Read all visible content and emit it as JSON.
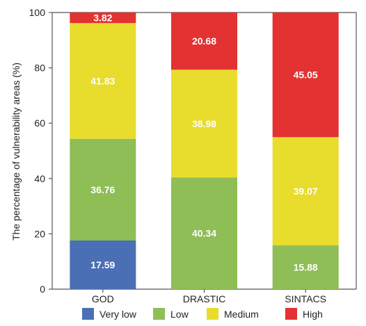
{
  "chart_data": {
    "type": "bar",
    "stacked": true,
    "categories": [
      "GOD",
      "DRASTIC",
      "SINTACS"
    ],
    "series": [
      {
        "name": "Very low",
        "color": "#4a6fb5",
        "values": [
          17.59,
          0,
          0
        ]
      },
      {
        "name": "Low",
        "color": "#8fbd56",
        "values": [
          36.76,
          40.34,
          15.88
        ]
      },
      {
        "name": "Medium",
        "color": "#e8dc2c",
        "values": [
          41.83,
          38.98,
          39.07
        ]
      },
      {
        "name": "High",
        "color": "#e33232",
        "values": [
          3.82,
          20.68,
          45.05
        ]
      }
    ],
    "ylabel": "The percentage of vulnerability areas (%)",
    "xlabel": "",
    "ylim": [
      0,
      100
    ],
    "yticks": [
      0,
      20,
      40,
      60,
      80,
      100
    ],
    "grid": false,
    "legend_position": "bottom"
  }
}
